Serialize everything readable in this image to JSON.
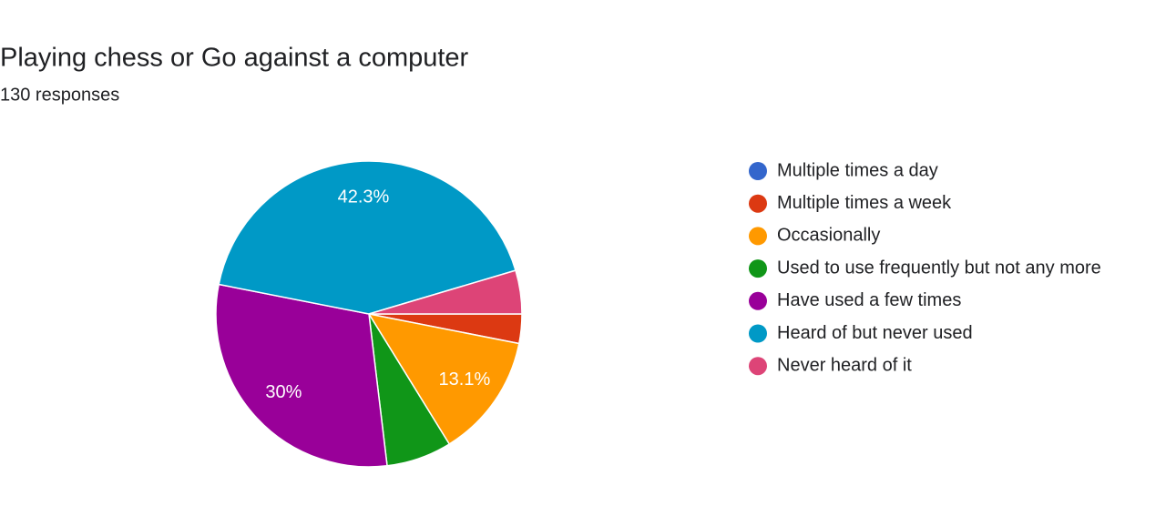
{
  "chart_data": {
    "type": "pie",
    "title": "Playing chess or Go against a computer",
    "subtitle": "130 responses",
    "categories": [
      "Multiple times a day",
      "Multiple times a week",
      "Occasionally",
      "Used to use frequently but not any more",
      "Have used a few times",
      "Heard of but never used",
      "Never heard of it"
    ],
    "values": [
      0,
      3.1,
      13.1,
      6.9,
      30,
      42.3,
      4.6
    ],
    "value_labels": [
      null,
      null,
      "13.1%",
      null,
      "30%",
      "42.3%",
      null
    ],
    "colors": [
      "#3366cc",
      "#dc3912",
      "#ff9900",
      "#109618",
      "#990099",
      "#0099c6",
      "#dd4477"
    ],
    "legend": "right"
  }
}
